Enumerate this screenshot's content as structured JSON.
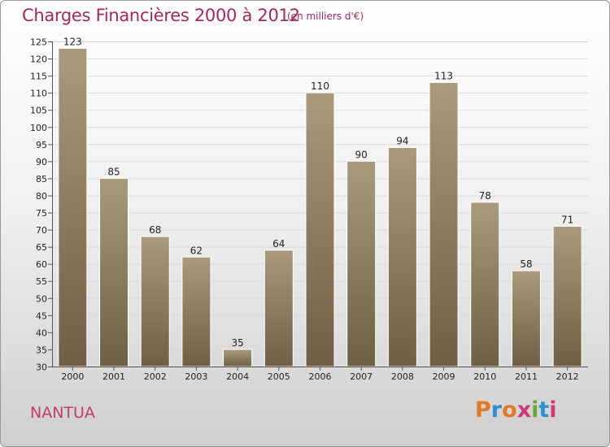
{
  "chart_data": {
    "type": "bar",
    "title": "Charges Financières 2000 à 2012",
    "subtitle": "(en milliers d'€)",
    "categories": [
      "2000",
      "2001",
      "2002",
      "2003",
      "2004",
      "2005",
      "2006",
      "2007",
      "2008",
      "2009",
      "2010",
      "2011",
      "2012"
    ],
    "values": [
      123,
      85,
      68,
      62,
      35,
      64,
      110,
      90,
      94,
      113,
      78,
      58,
      71
    ],
    "ylim": [
      30,
      125
    ],
    "yticks": [
      30,
      35,
      40,
      45,
      50,
      55,
      60,
      65,
      70,
      75,
      80,
      85,
      90,
      95,
      100,
      105,
      110,
      115,
      120,
      125
    ],
    "grid": true,
    "bar_color": "#8c7b5e"
  },
  "place_name": "NANTUA",
  "logo": {
    "letters": [
      "P",
      "r",
      "o",
      "x",
      "i",
      "t",
      "i"
    ],
    "colors": [
      "#e07a28",
      "#2f8fd0",
      "#e07a28",
      "#d0397a",
      "#6aa832",
      "#2f8fd0",
      "#d0397a"
    ]
  }
}
